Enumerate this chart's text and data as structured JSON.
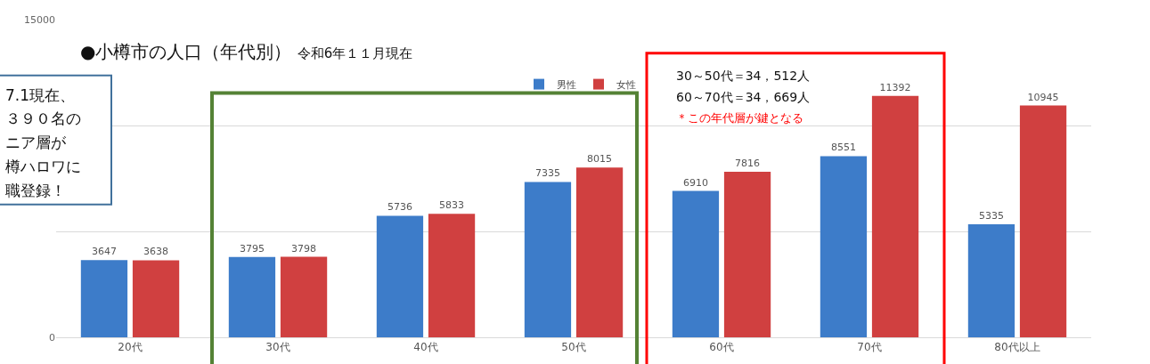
{
  "chart_data": {
    "type": "bar",
    "title": "●小樽市の人口（年代別）",
    "subtitle": "令和6年１１月現在",
    "categories": [
      "20代",
      "30代",
      "40代",
      "50代",
      "60代",
      "70代",
      "80代以上"
    ],
    "series": [
      {
        "name": "男性",
        "color": "#3d7cc9",
        "values": [
          3647,
          3795,
          5736,
          7335,
          6910,
          8551,
          5335
        ]
      },
      {
        "name": "女性",
        "color": "#d04040",
        "values": [
          3638,
          3798,
          5833,
          8015,
          7816,
          11392,
          10945
        ]
      }
    ],
    "ylim": [
      0,
      15000
    ],
    "yticks": [
      0,
      {
        "value": 5000,
        "label": null
      },
      {
        "value": 10000,
        "label": null
      },
      15000
    ],
    "grid": "y",
    "legend": "top",
    "data_labels": true,
    "annotations": [
      "7.1現在、",
      "３９０名の",
      "ニア層が",
      "樽ハロワに",
      "職登録！",
      "30～50代＝34，512人",
      "60～70代＝34，669人",
      "＊この年代層が鍵となる"
    ]
  }
}
